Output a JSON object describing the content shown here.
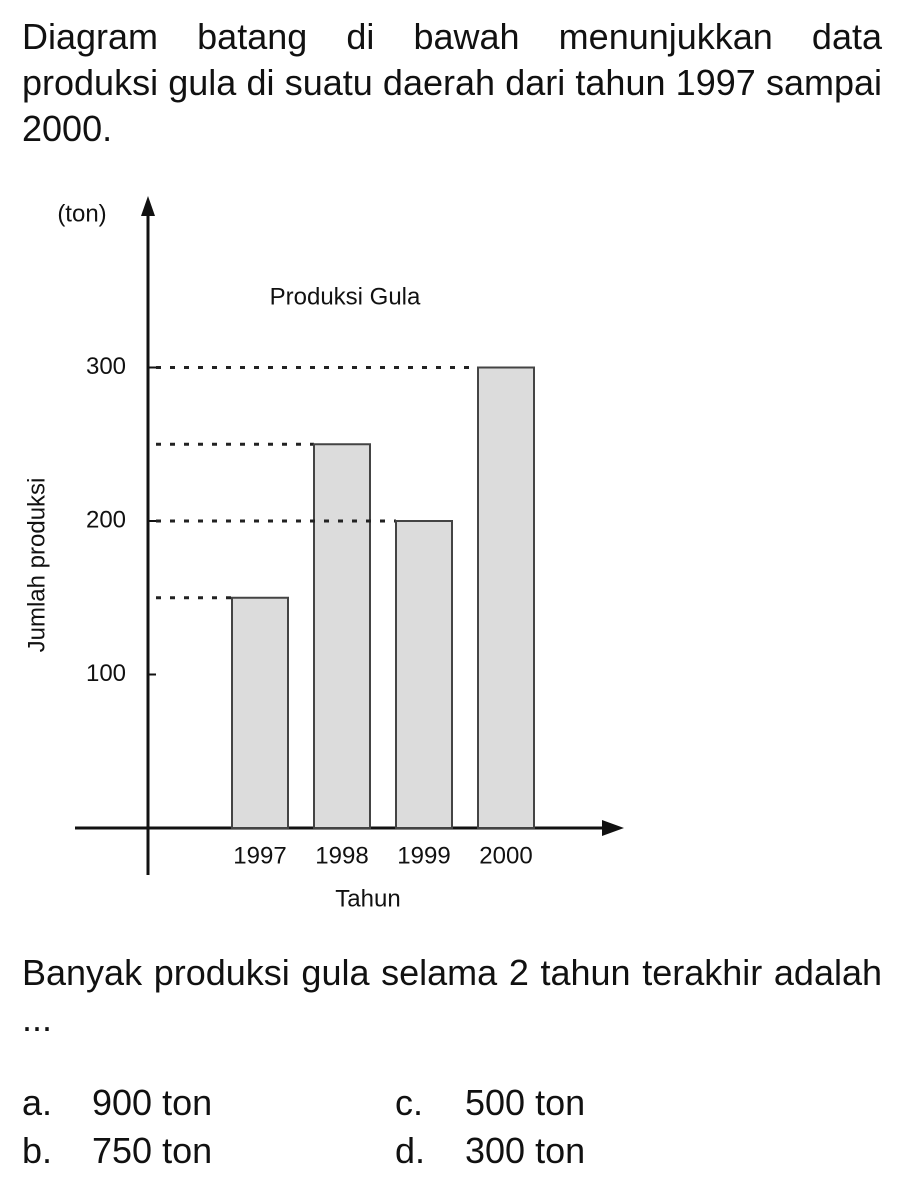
{
  "header": {
    "text": "Diagram batang di bawah menunjukkan data produksi gula di suatu daerah dari tahun 1997 sampai 2000."
  },
  "chart_data": {
    "type": "bar",
    "title": "Produksi Gula",
    "y_unit": "(ton)",
    "y_label": "Jumlah produksi",
    "x_label": "Tahun",
    "categories": [
      "1997",
      "1998",
      "1999",
      "2000"
    ],
    "values": [
      150,
      250,
      200,
      300
    ],
    "color": "#dcdcdc",
    "ylim": [
      0,
      400
    ],
    "yticks": [
      100,
      200,
      300
    ],
    "reference_lines": true
  },
  "question": {
    "text": "Banyak produksi gula selama 2 tahun terakhir adalah ...",
    "options": [
      {
        "label": "a.",
        "text": "900 ton"
      },
      {
        "label": "b.",
        "text": "750 ton"
      },
      {
        "label": "c.",
        "text": "500 ton"
      },
      {
        "label": "d.",
        "text": "300 ton"
      }
    ]
  }
}
